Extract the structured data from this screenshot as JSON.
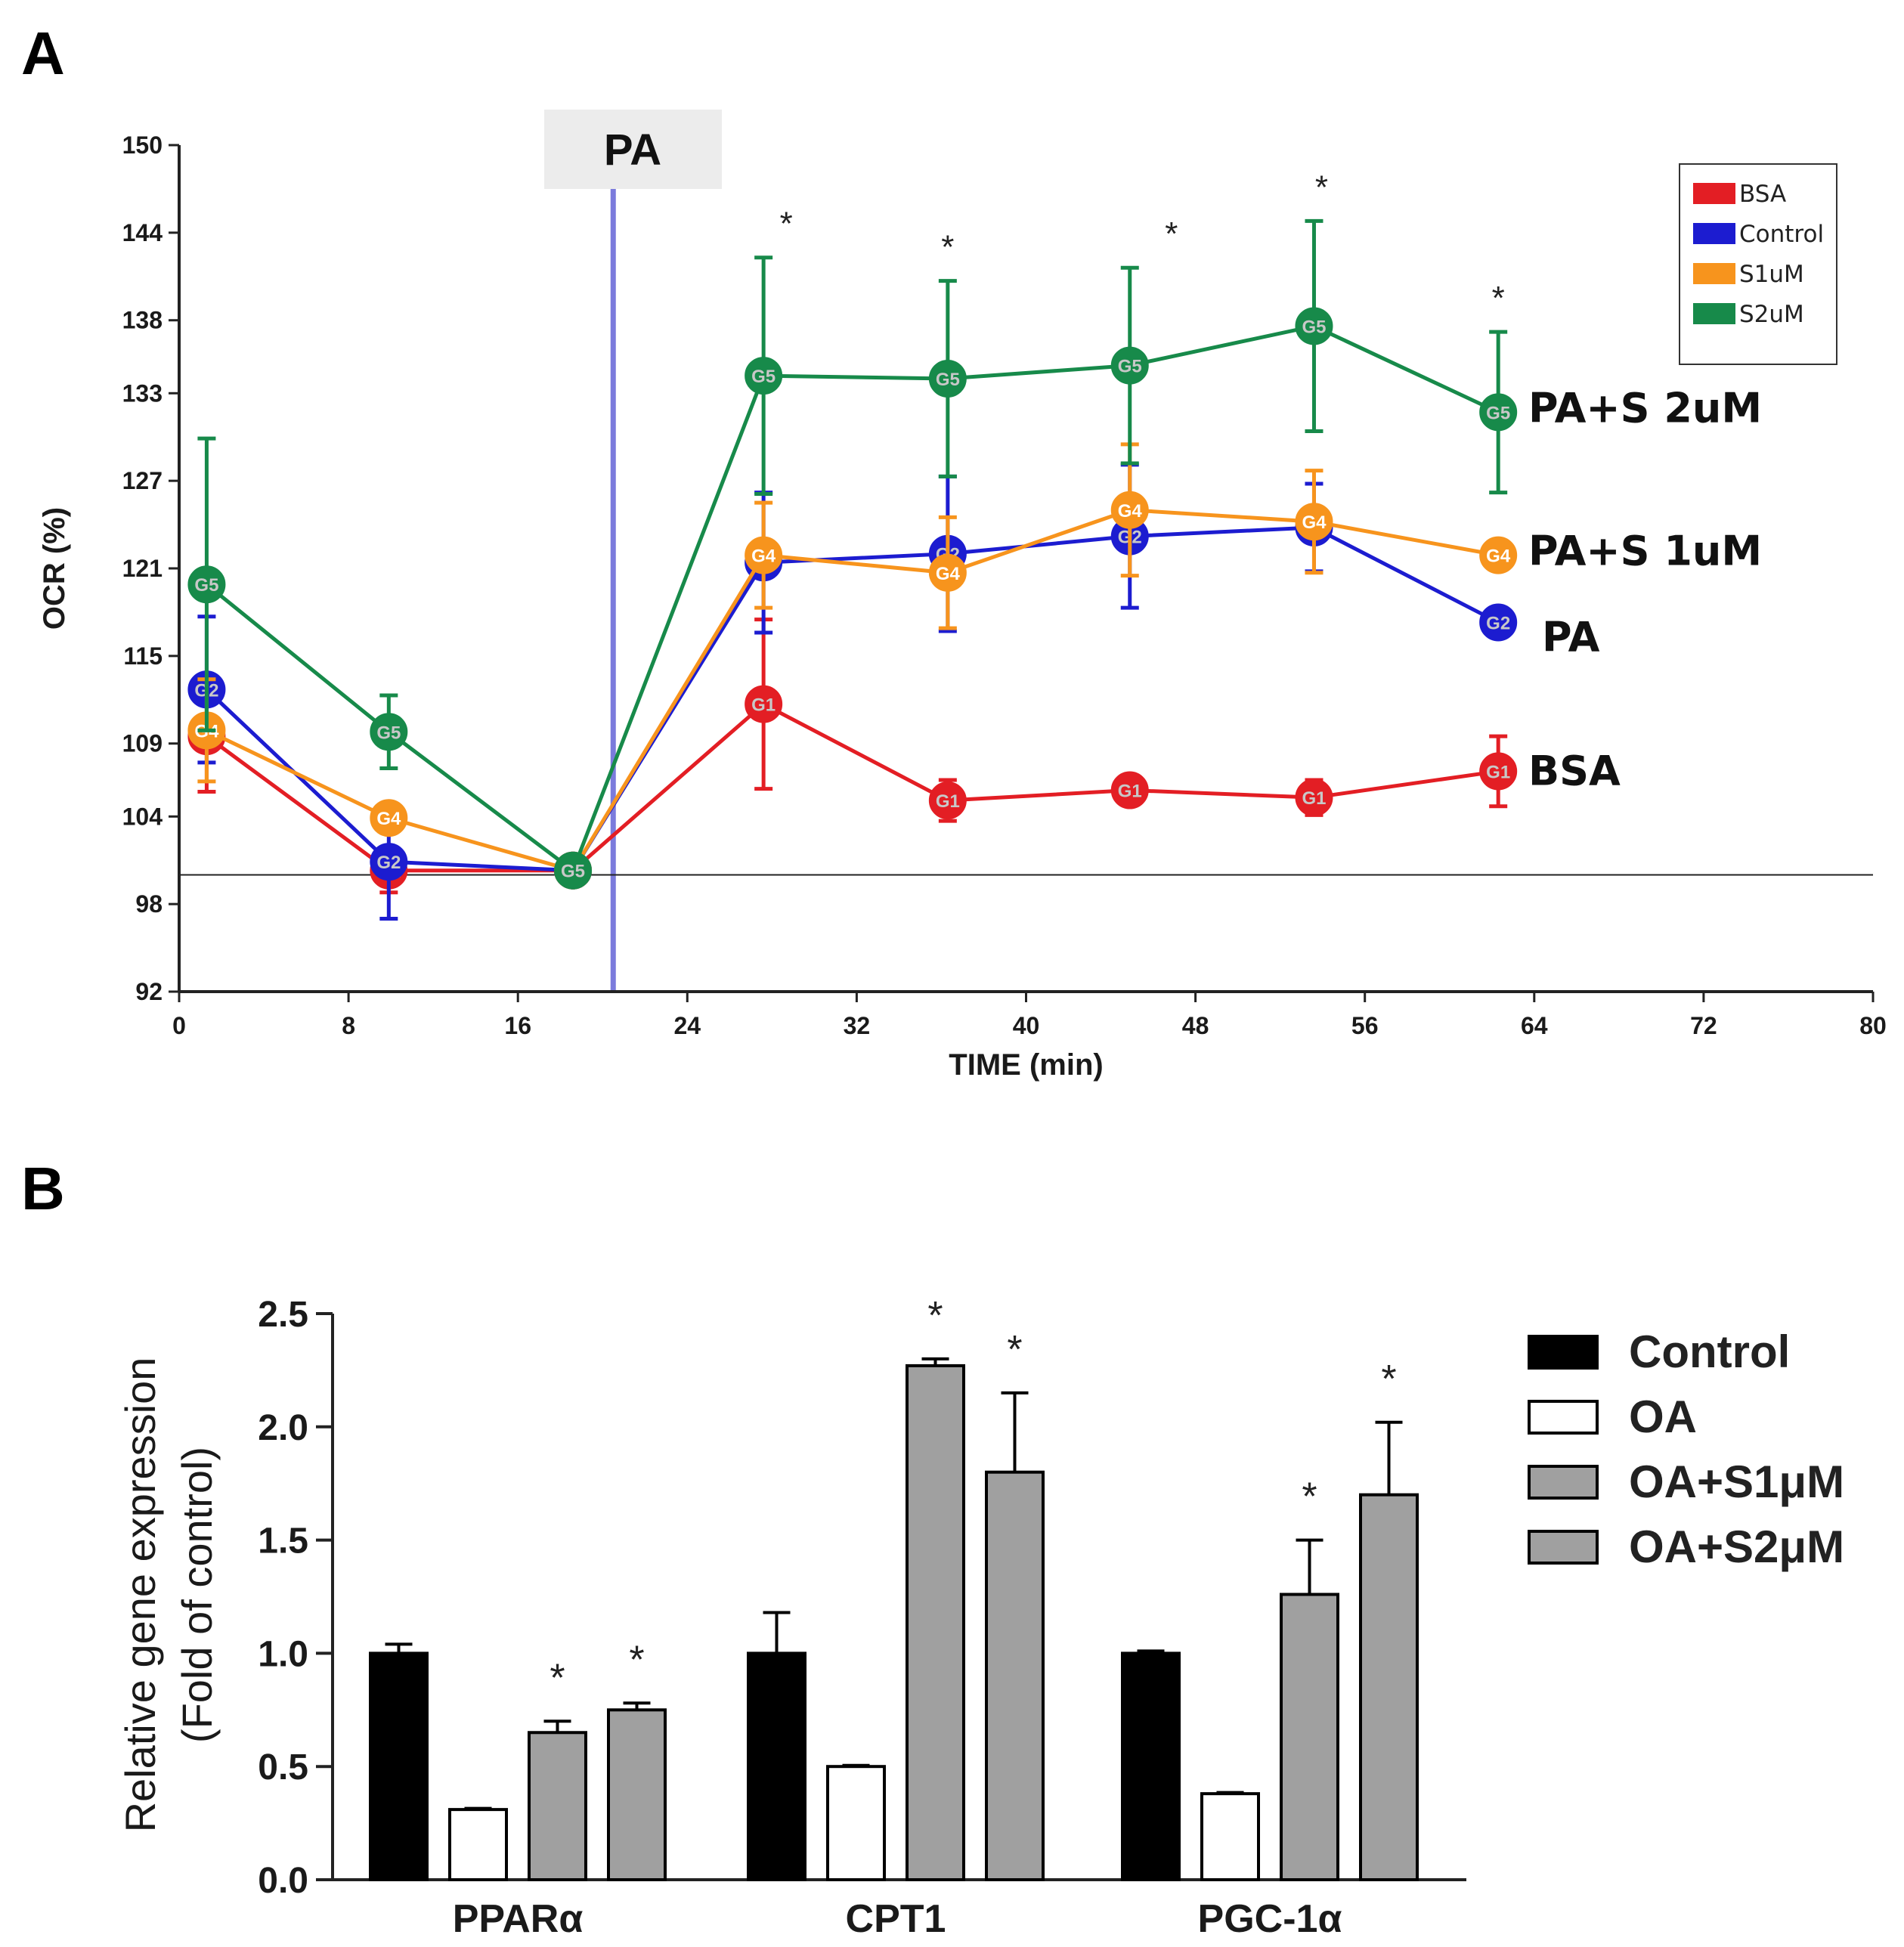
{
  "chart_data": [
    {
      "panel": "A",
      "type": "line",
      "xlabel": "TIME (min)",
      "ylabel": "OCR (%)",
      "xlim": [
        0,
        80
      ],
      "ylim": [
        92,
        150
      ],
      "xticks": [
        "0",
        "8",
        "16",
        "24",
        "32",
        "40",
        "48",
        "56",
        "64",
        "72",
        "80"
      ],
      "yticks": [
        "92",
        "98",
        "104",
        "109",
        "115",
        "121",
        "127",
        "133",
        "138",
        "144",
        "150"
      ],
      "baseline": 100,
      "annotation_box": "PA",
      "annotation_x": 20.5,
      "x": [
        1.3,
        9.9,
        18.6,
        27.6,
        36.3,
        44.9,
        53.6,
        62.3
      ],
      "series": [
        {
          "name": "BSA",
          "marker": "G1",
          "color": "#e31e24",
          "right_label": "BSA",
          "values": [
            109.5,
            100.3,
            100.3,
            111.7,
            105.1,
            105.8,
            105.3,
            107.1
          ],
          "errors": [
            3.8,
            1.5,
            0,
            5.8,
            1.4,
            0,
            1.2,
            2.4
          ]
        },
        {
          "name": "Control",
          "marker": "G2",
          "color": "#1c1cd0",
          "right_label": "PA",
          "values": [
            112.7,
            100.9,
            100.3,
            121.4,
            122.0,
            123.2,
            123.8,
            117.3
          ],
          "errors": [
            5.0,
            3.9,
            0,
            4.8,
            5.3,
            4.9,
            3.0,
            0
          ]
        },
        {
          "name": "S1uM",
          "marker": "G4",
          "color": "#f7941d",
          "right_label": "PA+S 1uM",
          "values": [
            109.9,
            103.9,
            100.3,
            121.9,
            120.7,
            125.0,
            124.2,
            121.9
          ],
          "errors": [
            3.5,
            0,
            0,
            3.6,
            3.8,
            4.5,
            3.5,
            0
          ]
        },
        {
          "name": "S2uM",
          "marker": "G5",
          "color": "#178a4a",
          "right_label": "PA+S 2uM",
          "values": [
            119.9,
            109.8,
            100.3,
            134.2,
            134.0,
            134.9,
            137.6,
            131.7
          ],
          "errors": [
            10.0,
            2.5,
            0,
            8.1,
            6.7,
            6.7,
            7.2,
            5.5
          ]
        }
      ],
      "significance": [
        {
          "x": 27.6,
          "label": "*"
        },
        {
          "x": 36.3,
          "label": "*"
        },
        {
          "x": 44.9,
          "label": "*"
        },
        {
          "x": 53.6,
          "label": "*"
        },
        {
          "x": 62.3,
          "label": "*"
        }
      ]
    },
    {
      "panel": "B",
      "type": "bar",
      "ylabel_line1": "Relative gene expression",
      "ylabel_line2": "(Fold of control)",
      "ylim": [
        0,
        2.5
      ],
      "yticks": [
        "0.0",
        "0.5",
        "1.0",
        "1.5",
        "2.0",
        "2.5"
      ],
      "categories": [
        "PPARα",
        "CPT1",
        "PGC-1α"
      ],
      "series": [
        {
          "name": "Control",
          "fill": "#000000",
          "values": [
            1.0,
            1.0,
            1.0
          ],
          "errors": [
            0.04,
            0.18,
            0.01
          ],
          "sig": [
            "",
            "",
            ""
          ]
        },
        {
          "name": "OA",
          "fill": "#ffffff",
          "values": [
            0.31,
            0.5,
            0.38
          ],
          "errors": [
            0.005,
            0.005,
            0.005
          ],
          "sig": [
            "",
            "",
            ""
          ]
        },
        {
          "name": "OA+S1μM",
          "fill": "#a0a0a0",
          "values": [
            0.65,
            2.27,
            1.26
          ],
          "errors": [
            0.05,
            0.03,
            0.24
          ],
          "sig": [
            "*",
            "*",
            "*"
          ]
        },
        {
          "name": "OA+S2μM",
          "fill": "#a0a0a0",
          "values": [
            0.75,
            1.8,
            1.7
          ],
          "errors": [
            0.03,
            0.35,
            0.32
          ],
          "sig": [
            "*",
            "*",
            "*"
          ]
        }
      ]
    }
  ],
  "panels": {
    "a_label": "A",
    "b_label": "B"
  }
}
